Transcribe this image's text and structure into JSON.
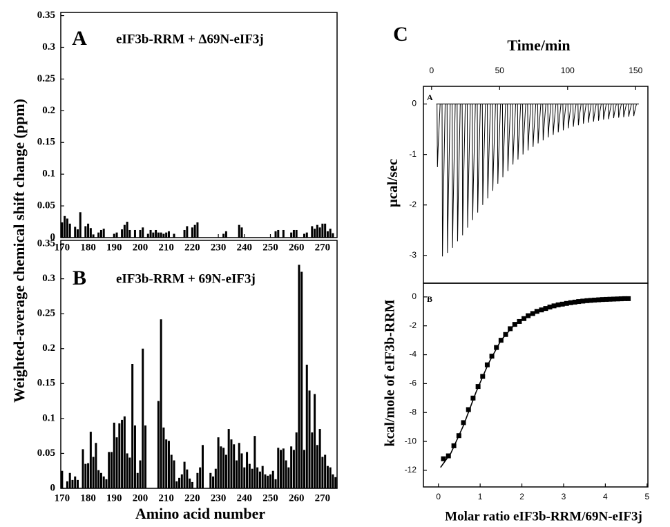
{
  "chart_data": [
    {
      "type": "bar",
      "panel_label": "A",
      "title": "eIF3b-RRM + Δ69N-eIF3j",
      "ylabel": "Weighted-average chemical shift change (ppm)",
      "color": "#000000",
      "x": [
        170,
        171,
        172,
        173,
        175,
        176,
        177,
        179,
        180,
        181,
        182,
        184,
        185,
        186,
        190,
        191,
        193,
        194,
        195,
        196,
        198,
        200,
        201,
        203,
        204,
        205,
        206,
        207,
        208,
        209,
        210,
        211,
        213,
        217,
        218,
        220,
        221,
        222,
        232,
        233,
        238,
        239,
        252,
        253,
        255,
        258,
        259,
        260,
        263,
        264,
        266,
        267,
        268,
        269,
        270,
        271,
        272,
        273,
        274
      ],
      "values": [
        0.024,
        0.034,
        0.03,
        0.022,
        0.017,
        0.013,
        0.04,
        0.018,
        0.022,
        0.015,
        0.005,
        0.008,
        0.012,
        0.014,
        0.006,
        0.008,
        0.013,
        0.02,
        0.025,
        0.012,
        0.012,
        0.012,
        0.016,
        0.006,
        0.012,
        0.008,
        0.012,
        0.008,
        0.008,
        0.006,
        0.008,
        0.01,
        0.006,
        0.012,
        0.018,
        0.016,
        0.02,
        0.024,
        0.006,
        0.01,
        0.02,
        0.016,
        0.01,
        0.012,
        0.012,
        0.008,
        0.012,
        0.012,
        0.006,
        0.008,
        0.018,
        0.014,
        0.02,
        0.016,
        0.022,
        0.022,
        0.01,
        0.014,
        0.007
      ],
      "xlim": [
        169.5,
        275.6
      ],
      "xticks": [
        170,
        180,
        190,
        200,
        210,
        220,
        230,
        240,
        250,
        260,
        270
      ],
      "ylim": [
        0,
        0.355
      ],
      "yticks": [
        0,
        0.05,
        0.1,
        0.15,
        0.2,
        0.25,
        0.3,
        0.35
      ]
    },
    {
      "type": "bar",
      "panel_label": "B",
      "title": "eIF3b-RRM + 69N-eIF3j",
      "xlabel": "Amino acid number",
      "color": "#000000",
      "x": [
        170,
        172,
        173,
        174,
        175,
        176,
        178,
        179,
        180,
        181,
        182,
        183,
        184,
        185,
        186,
        187,
        188,
        189,
        190,
        191,
        192,
        193,
        194,
        195,
        196,
        197,
        198,
        199,
        200,
        201,
        202,
        207,
        208,
        209,
        210,
        211,
        212,
        213,
        214,
        215,
        216,
        217,
        218,
        219,
        220,
        222,
        223,
        224,
        227,
        228,
        229,
        230,
        231,
        232,
        233,
        234,
        235,
        236,
        237,
        238,
        239,
        240,
        241,
        242,
        243,
        244,
        245,
        246,
        247,
        248,
        249,
        250,
        251,
        252,
        253,
        254,
        255,
        256,
        257,
        258,
        259,
        260,
        261,
        262,
        263,
        264,
        265,
        266,
        267,
        268,
        269,
        270,
        271,
        272,
        273,
        274,
        275
      ],
      "values": [
        0.025,
        0.01,
        0.022,
        0.012,
        0.017,
        0.012,
        0.056,
        0.035,
        0.036,
        0.081,
        0.045,
        0.065,
        0.026,
        0.022,
        0.017,
        0.013,
        0.052,
        0.052,
        0.094,
        0.073,
        0.093,
        0.098,
        0.103,
        0.05,
        0.044,
        0.178,
        0.09,
        0.022,
        0.04,
        0.2,
        0.09,
        0.125,
        0.242,
        0.087,
        0.07,
        0.068,
        0.048,
        0.04,
        0.01,
        0.015,
        0.02,
        0.038,
        0.027,
        0.014,
        0.009,
        0.022,
        0.03,
        0.062,
        0.022,
        0.017,
        0.028,
        0.073,
        0.06,
        0.058,
        0.048,
        0.085,
        0.07,
        0.063,
        0.04,
        0.065,
        0.05,
        0.03,
        0.052,
        0.035,
        0.028,
        0.075,
        0.03,
        0.024,
        0.032,
        0.02,
        0.018,
        0.02,
        0.025,
        0.013,
        0.058,
        0.055,
        0.057,
        0.04,
        0.03,
        0.06,
        0.055,
        0.08,
        0.32,
        0.31,
        0.055,
        0.177,
        0.14,
        0.08,
        0.135,
        0.062,
        0.085,
        0.045,
        0.048,
        0.032,
        0.03,
        0.02,
        0.016
      ],
      "xlim": [
        169.5,
        275.6
      ],
      "xticks": [
        170,
        180,
        190,
        200,
        210,
        220,
        230,
        240,
        250,
        260,
        270
      ],
      "ylim": [
        0,
        0.355
      ],
      "yticks": [
        0,
        0.05,
        0.1,
        0.15,
        0.2,
        0.25,
        0.3,
        0.35
      ]
    },
    {
      "type": "spike",
      "group_label": "C",
      "panel_label": "A",
      "xlabel": "Time/min",
      "ylabel": "μcal/sec",
      "xaxis_position": "top",
      "color": "#000000",
      "x": [
        4,
        7.7,
        11.4,
        15.1,
        18.8,
        22.5,
        26.2,
        29.9,
        33.6,
        37.3,
        41,
        44.7,
        48.4,
        52.1,
        55.8,
        59.5,
        63.2,
        66.9,
        70.6,
        74.3,
        78,
        81.7,
        85.4,
        89.1,
        92.8,
        96.5,
        100.2,
        103.9,
        107.6,
        111.3,
        115,
        118.7,
        122.4,
        126.1,
        129.8,
        133.5,
        137.2,
        140.9,
        144.6,
        148.3
      ],
      "values": [
        -1.25,
        -3.02,
        -2.95,
        -2.85,
        -2.72,
        -2.6,
        -2.45,
        -2.3,
        -2.15,
        -2.0,
        -1.87,
        -1.72,
        -1.58,
        -1.45,
        -1.33,
        -1.2,
        -1.1,
        -1.0,
        -0.92,
        -0.85,
        -0.78,
        -0.72,
        -0.66,
        -0.61,
        -0.56,
        -0.52,
        -0.48,
        -0.45,
        -0.42,
        -0.39,
        -0.37,
        -0.35,
        -0.33,
        -0.31,
        -0.3,
        -0.28,
        -0.27,
        -0.26,
        -0.25,
        -0.24
      ],
      "xlim": [
        -6,
        159
      ],
      "xticks": [
        0,
        50,
        100,
        150
      ],
      "ylim": [
        -3.55,
        0.35
      ],
      "yticks": [
        -3,
        -2,
        -1,
        0
      ]
    },
    {
      "type": "scatter",
      "panel_label": "B",
      "xlabel": "Molar ratio eIF3b-RRM/69N-eIF3j",
      "ylabel": "kcal/mole of eIF3b-RRM",
      "series": [
        {
          "marker": "square",
          "color": "#000000",
          "x": [
            0.12,
            0.24,
            0.37,
            0.49,
            0.6,
            0.72,
            0.83,
            0.95,
            1.06,
            1.17,
            1.28,
            1.39,
            1.5,
            1.61,
            1.72,
            1.83,
            1.94,
            2.05,
            2.15,
            2.26,
            2.36,
            2.47,
            2.57,
            2.67,
            2.77,
            2.87,
            2.97,
            3.07,
            3.17,
            3.27,
            3.36,
            3.46,
            3.56,
            3.65,
            3.74,
            3.84,
            3.93,
            4.02,
            4.11,
            4.2,
            4.29,
            4.38,
            4.46,
            4.55
          ],
          "values": [
            -11.2,
            -11.0,
            -10.3,
            -9.6,
            -8.7,
            -7.8,
            -7.0,
            -6.2,
            -5.5,
            -4.7,
            -4.1,
            -3.5,
            -3.0,
            -2.6,
            -2.2,
            -1.9,
            -1.7,
            -1.5,
            -1.3,
            -1.15,
            -1.0,
            -0.9,
            -0.8,
            -0.7,
            -0.62,
            -0.55,
            -0.5,
            -0.45,
            -0.4,
            -0.36,
            -0.32,
            -0.29,
            -0.26,
            -0.24,
            -0.22,
            -0.2,
            -0.18,
            -0.17,
            -0.16,
            -0.15,
            -0.14,
            -0.13,
            -0.12,
            -0.12
          ]
        },
        {
          "marker": "line",
          "color": "#000000",
          "x": [
            0.05,
            0.3,
            0.6,
            0.9,
            1.2,
            1.5,
            1.8,
            2.1,
            2.5,
            3,
            3.5,
            4,
            4.55
          ],
          "values": [
            -11.8,
            -10.8,
            -8.9,
            -6.6,
            -4.6,
            -3.0,
            -2.0,
            -1.4,
            -0.9,
            -0.5,
            -0.3,
            -0.18,
            -0.12
          ]
        }
      ],
      "xlim": [
        -0.36,
        5.02
      ],
      "xticks": [
        0,
        1,
        2,
        3,
        4,
        5
      ],
      "ylim": [
        -13.15,
        0.95
      ],
      "yticks": [
        -12,
        -10,
        -8,
        -6,
        -4,
        -2,
        0
      ]
    }
  ]
}
